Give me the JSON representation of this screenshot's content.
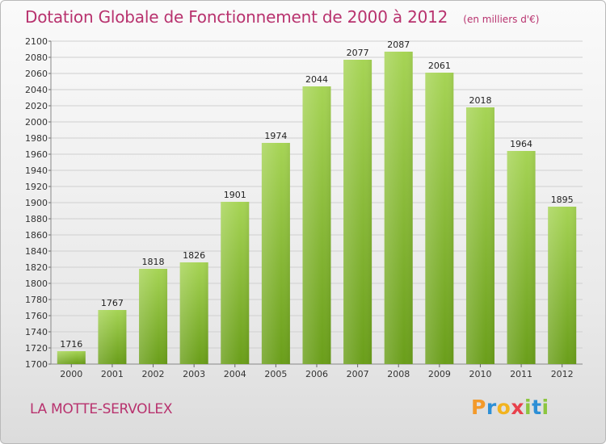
{
  "chart_data": {
    "type": "bar",
    "title": "Dotation Globale de Fonctionnement de 2000 à 2012",
    "unit": "(en milliers d'€)",
    "categories": [
      "2000",
      "2001",
      "2002",
      "2003",
      "2004",
      "2005",
      "2006",
      "2007",
      "2008",
      "2009",
      "2010",
      "2011",
      "2012"
    ],
    "values": [
      1716,
      1767,
      1818,
      1826,
      1901,
      1974,
      2044,
      2077,
      2087,
      2061,
      2018,
      1964,
      1895
    ],
    "ylim": [
      1700,
      2100
    ],
    "yticks": [
      1700,
      1720,
      1740,
      1760,
      1780,
      1800,
      1820,
      1840,
      1860,
      1880,
      1900,
      1920,
      1940,
      1960,
      1980,
      2000,
      2020,
      2040,
      2060,
      2080,
      2100
    ],
    "grid": true,
    "bar_color_light": "#a6d455",
    "bar_color_dark": "#6a9e1a"
  },
  "commune": "LA MOTTE-SERVOLEX",
  "brand": {
    "letters": [
      "P",
      "r",
      "o",
      "x",
      "i",
      "t",
      "i"
    ],
    "colors": [
      "#f39a2b",
      "#2d8fd6",
      "#f2b31f",
      "#e8414c",
      "#8cc63f",
      "#2d8fd6",
      "#8cc63f"
    ]
  },
  "colors": {
    "title": "#b8326e",
    "grid": "#cfcfcf",
    "axis_text": "#333333"
  }
}
